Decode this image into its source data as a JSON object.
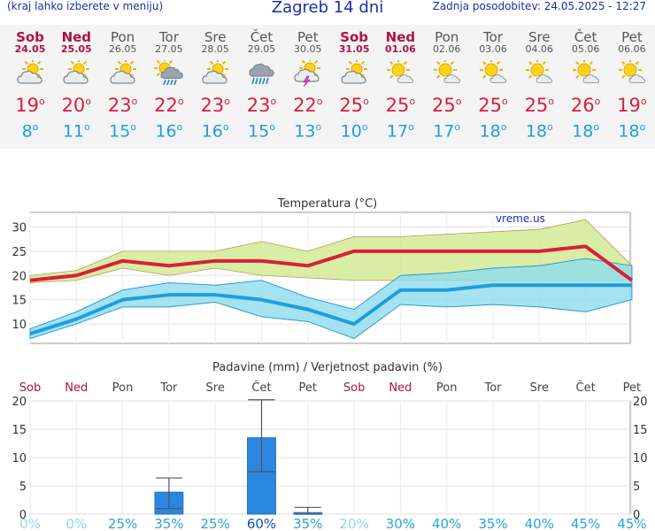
{
  "header": {
    "menu_hint": "(kraj lahko izberete v meniju)",
    "title": "Zagreb 14 dni",
    "updated": "Zadnja posodobitev: 24.05.2025 - 12:27"
  },
  "days": [
    {
      "name": "Sob",
      "date": "24.05",
      "weekend": true,
      "icon": "partly-cloudy-icon",
      "tmax": "19",
      "tmin": "8"
    },
    {
      "name": "Ned",
      "date": "25.05",
      "weekend": true,
      "icon": "partly-cloudy-icon",
      "tmax": "20",
      "tmin": "11"
    },
    {
      "name": "Pon",
      "date": "26.05",
      "weekend": false,
      "icon": "partly-cloudy-icon",
      "tmax": "23",
      "tmin": "15"
    },
    {
      "name": "Tor",
      "date": "27.05",
      "weekend": false,
      "icon": "sun-cloud-rain-icon",
      "tmax": "22",
      "tmin": "16"
    },
    {
      "name": "Sre",
      "date": "28.05",
      "weekend": false,
      "icon": "partly-cloudy-icon",
      "tmax": "23",
      "tmin": "16"
    },
    {
      "name": "Čet",
      "date": "29.05",
      "weekend": false,
      "icon": "cloud-rain-icon",
      "tmax": "23",
      "tmin": "15"
    },
    {
      "name": "Pet",
      "date": "30.05",
      "weekend": false,
      "icon": "sun-cloud-thunder-icon",
      "tmax": "22",
      "tmin": "13"
    },
    {
      "name": "Sob",
      "date": "31.05",
      "weekend": true,
      "icon": "partly-cloudy-icon",
      "tmax": "25",
      "tmin": "10"
    },
    {
      "name": "Ned",
      "date": "01.06",
      "weekend": true,
      "icon": "mostly-sunny-icon",
      "tmax": "25",
      "tmin": "17"
    },
    {
      "name": "Pon",
      "date": "02.06",
      "weekend": false,
      "icon": "mostly-sunny-icon",
      "tmax": "25",
      "tmin": "17"
    },
    {
      "name": "Tor",
      "date": "03.06",
      "weekend": false,
      "icon": "mostly-sunny-icon",
      "tmax": "25",
      "tmin": "18"
    },
    {
      "name": "Sre",
      "date": "04.06",
      "weekend": false,
      "icon": "mostly-sunny-icon",
      "tmax": "25",
      "tmin": "18"
    },
    {
      "name": "Čet",
      "date": "05.06",
      "weekend": false,
      "icon": "mostly-sunny-icon",
      "tmax": "26",
      "tmin": "18"
    },
    {
      "name": "Pet",
      "date": "06.06",
      "weekend": false,
      "icon": "mostly-sunny-icon",
      "tmax": "19",
      "tmin": "18"
    }
  ],
  "colors": {
    "tmax": "#d8203a",
    "tmin": "#1e9ee0",
    "weekend": "#b0104a",
    "tmax_band": "#d4ea94",
    "tmin_band": "#8fdcec",
    "bar": "#2b86e0",
    "prob_low": "#8fd8f0",
    "prob_mid": "#29a3e3",
    "prob_high": "#1050c8"
  },
  "chart_data": [
    {
      "type": "line",
      "title": "Temperatura (°C)",
      "watermark": "vreme.us",
      "ylim": [
        6,
        33
      ],
      "yticks": [
        10,
        15,
        20,
        25,
        30
      ],
      "x": [
        "Sob",
        "Ned",
        "Pon",
        "Tor",
        "Sre",
        "Čet",
        "Pet",
        "Sob",
        "Ned",
        "Pon",
        "Tor",
        "Sre",
        "Čet",
        "Pet"
      ],
      "series": [
        {
          "name": "max",
          "values": [
            19,
            20,
            23,
            22,
            23,
            23,
            22,
            25,
            25,
            25,
            25,
            25,
            26,
            19
          ]
        },
        {
          "name": "min",
          "values": [
            8,
            11,
            15,
            16,
            16,
            15,
            13,
            10,
            17,
            17,
            18,
            18,
            18,
            18
          ]
        }
      ],
      "max_band_upper": [
        20,
        21,
        25,
        25,
        25,
        27,
        25,
        28,
        28,
        28.5,
        29,
        29.5,
        31.5,
        22
      ],
      "max_band_lower": [
        18.5,
        19,
        21.5,
        20,
        21.5,
        20,
        19.5,
        19,
        19,
        19,
        19,
        19,
        19,
        19
      ],
      "min_band_upper": [
        9,
        12.5,
        17,
        18.5,
        18,
        19,
        15.5,
        13,
        20,
        20.5,
        21.5,
        22,
        23.5,
        22
      ],
      "min_band_lower": [
        7,
        10,
        13.5,
        13.5,
        14.5,
        11.5,
        10.5,
        7,
        14,
        13.5,
        14,
        13.5,
        12.5,
        15
      ],
      "grid": true
    },
    {
      "type": "bar",
      "title": "Padavine (mm) / Verjetnost padavin (%)",
      "ylim": [
        0,
        20
      ],
      "yticks": [
        0,
        5,
        10,
        15,
        20
      ],
      "categories": [
        "Sob",
        "Ned",
        "Pon",
        "Tor",
        "Sre",
        "Čet",
        "Pet",
        "Sob",
        "Ned",
        "Pon",
        "Tor",
        "Sre",
        "Čet",
        "Pet"
      ],
      "values": [
        0,
        0,
        0,
        3.9,
        0,
        13.5,
        0.3,
        0,
        0,
        0,
        0,
        0,
        0,
        0
      ],
      "error_high": [
        null,
        null,
        null,
        6.4,
        null,
        20.2,
        1.2,
        null,
        null,
        null,
        null,
        null,
        null,
        null
      ],
      "error_low": [
        null,
        null,
        null,
        1.0,
        null,
        7.5,
        0,
        null,
        null,
        null,
        null,
        null,
        null,
        null
      ],
      "probability": [
        "0%",
        "0%",
        "25%",
        "35%",
        "25%",
        "60%",
        "35%",
        "20%",
        "30%",
        "40%",
        "35%",
        "40%",
        "45%",
        "45%"
      ],
      "grid": true
    }
  ]
}
